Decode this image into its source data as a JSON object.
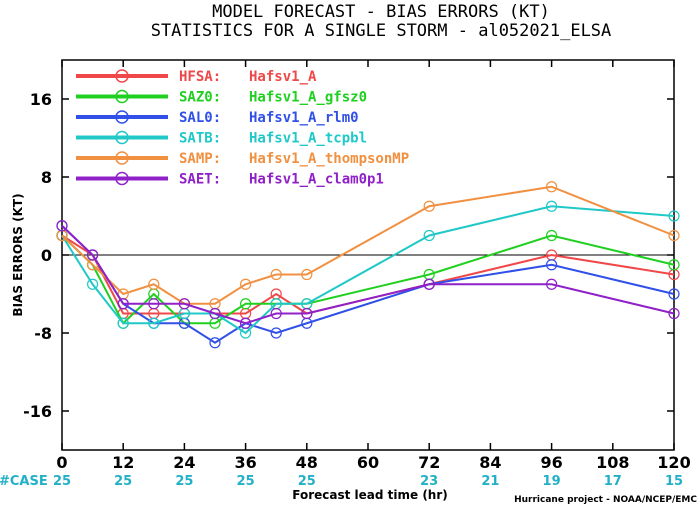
{
  "chart_data": {
    "type": "line",
    "title": "MODEL FORECAST - BIAS ERRORS (KT)",
    "subtitle": "STATISTICS FOR A SINGLE STORM - al052021_ELSA",
    "xlabel": "Forecast lead time (hr)",
    "ylabel": "BIAS ERRORS (KT)",
    "xlim": [
      0,
      120
    ],
    "ylim": [
      -20,
      20
    ],
    "x_ticks": [
      0,
      12,
      24,
      36,
      48,
      60,
      72,
      84,
      96,
      108,
      120
    ],
    "y_ticks": [
      -16,
      -8,
      0,
      8,
      16
    ],
    "y_tick_labels": [
      "-16",
      "-8",
      "0",
      "8",
      "16"
    ],
    "zero_line": true,
    "grid": false,
    "legend_position": "top-left",
    "case_label": "#CASE",
    "case_counts": [
      25,
      25,
      25,
      25,
      25,
      23,
      21,
      19,
      17,
      15
    ],
    "case_hours": [
      0,
      12,
      24,
      36,
      48,
      72,
      84,
      96,
      108,
      120
    ],
    "credit": "Hurricane project - NOAA/NCEP/EMC",
    "series": [
      {
        "name": "HFSA:",
        "model": "Hafsv1_A",
        "color": "#f04848",
        "x": [
          0,
          6,
          12,
          18,
          24,
          30,
          36,
          42,
          48,
          72,
          96,
          120
        ],
        "y": [
          2,
          0,
          -6,
          -6,
          -6,
          -6,
          -6,
          -4,
          -6,
          -3,
          0,
          -2
        ]
      },
      {
        "name": "SAZ0:",
        "model": "Hafsv1_A_gfsz0",
        "color": "#20d020",
        "x": [
          0,
          6,
          12,
          18,
          24,
          30,
          36,
          42,
          48,
          72,
          96,
          120
        ],
        "y": [
          2,
          -1,
          -7,
          -4,
          -7,
          -7,
          -5,
          -5,
          -5,
          -2,
          2,
          -1
        ]
      },
      {
        "name": "SAL0:",
        "model": "Hafsv1_A_rlm0",
        "color": "#3050e8",
        "x": [
          0,
          6,
          12,
          18,
          24,
          30,
          36,
          42,
          48,
          72,
          96,
          120
        ],
        "y": [
          3,
          0,
          -5,
          -7,
          -7,
          -9,
          -7,
          -8,
          -7,
          -3,
          -1,
          -4
        ]
      },
      {
        "name": "SATB:",
        "model": "Hafsv1_A_tcpbl",
        "color": "#20c8c8",
        "x": [
          0,
          6,
          12,
          18,
          24,
          30,
          36,
          42,
          48,
          72,
          96,
          120
        ],
        "y": [
          2,
          -3,
          -7,
          -7,
          -6,
          -6,
          -8,
          -5,
          -5,
          2,
          5,
          4
        ]
      },
      {
        "name": "SAMP:",
        "model": "Hafsv1_A_thompsonMP",
        "color": "#f09040",
        "x": [
          0,
          6,
          12,
          18,
          24,
          30,
          36,
          42,
          48,
          72,
          96,
          120
        ],
        "y": [
          2,
          -1,
          -4,
          -3,
          -5,
          -5,
          -3,
          -2,
          -2,
          5,
          7,
          2
        ]
      },
      {
        "name": "SAET:",
        "model": "Hafsv1_A_clam0p1",
        "color": "#9020c8",
        "x": [
          0,
          6,
          12,
          18,
          24,
          30,
          36,
          42,
          48,
          72,
          96,
          120
        ],
        "y": [
          3,
          0,
          -5,
          -5,
          -5,
          -6,
          -7,
          -6,
          -6,
          -3,
          -3,
          -6
        ]
      }
    ]
  }
}
